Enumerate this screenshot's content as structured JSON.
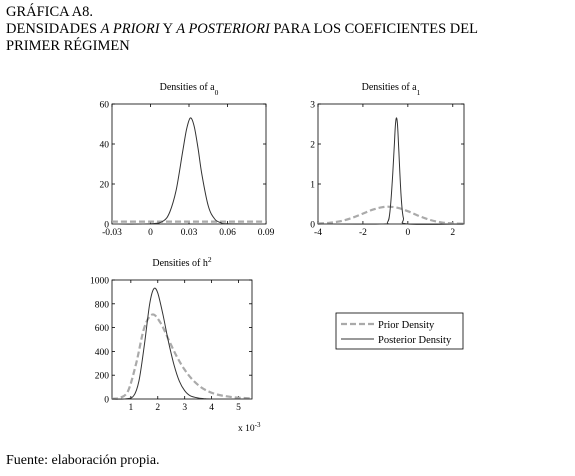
{
  "heading": {
    "line1": "GRÁFICA A8.",
    "line2_a": "DENSIDADES ",
    "line2_b": "A PRIORI",
    "line2_c": " Y ",
    "line2_d": "A POSTERIORI",
    "line2_e": " PARA LOS COEFICIENTES DEL",
    "line3": "PRIMER RÉGIMEN"
  },
  "source": "Fuente: elaboración propia.",
  "legend": {
    "prior": "Prior Density",
    "posterior": "Posterior Density"
  },
  "colors": {
    "prior": "#aaaaaa",
    "posterior": "#333333",
    "axis": "#000000"
  },
  "chart_data": [
    {
      "type": "line",
      "title": "Densities of a",
      "title_sub": "0",
      "xlim": [
        -0.03,
        0.09
      ],
      "ylim": [
        0,
        60
      ],
      "xticks": [
        -0.03,
        0,
        0.03,
        0.06,
        0.09
      ],
      "xtick_labels": [
        "-0.03",
        "0",
        "0.03",
        "0.06",
        "0.09"
      ],
      "yticks": [
        0,
        20,
        40,
        60
      ],
      "ytick_labels": [
        "0",
        "20",
        "40",
        "60"
      ],
      "series": [
        {
          "role": "prior",
          "x": [
            -0.03,
            0.0,
            0.03,
            0.06,
            0.09
          ],
          "y": [
            1.2,
            1.2,
            1.2,
            1.2,
            1.2
          ]
        },
        {
          "role": "posterior",
          "x": [
            -0.03,
            0.0,
            0.01,
            0.015,
            0.02,
            0.025,
            0.028,
            0.031,
            0.034,
            0.037,
            0.04,
            0.045,
            0.05,
            0.055,
            0.06,
            0.09
          ],
          "y": [
            0,
            0.1,
            1.5,
            6,
            17,
            36,
            47,
            53,
            49,
            38,
            25,
            9,
            2.5,
            0.6,
            0.1,
            0
          ]
        }
      ]
    },
    {
      "type": "line",
      "title": "Densities of a",
      "title_sub": "1",
      "xlim": [
        -4,
        2.5
      ],
      "ylim": [
        0,
        3
      ],
      "xticks": [
        -4,
        -2,
        0,
        2
      ],
      "xtick_labels": [
        "-4",
        "-2",
        "0",
        "2"
      ],
      "yticks": [
        0,
        1,
        2,
        3
      ],
      "ytick_labels": [
        "0",
        "1",
        "2",
        "3"
      ],
      "series": [
        {
          "role": "prior",
          "x": [
            -4,
            -3.5,
            -3,
            -2.5,
            -2,
            -1.5,
            -1,
            -0.5,
            0,
            0.5,
            1,
            1.5,
            2,
            2.5
          ],
          "y": [
            0.01,
            0.03,
            0.07,
            0.15,
            0.26,
            0.37,
            0.43,
            0.41,
            0.32,
            0.2,
            0.1,
            0.04,
            0.015,
            0.005
          ]
        },
        {
          "role": "posterior",
          "x": [
            -4,
            -1.2,
            -0.9,
            -0.8,
            -0.7,
            -0.6,
            -0.55,
            -0.5,
            -0.45,
            -0.4,
            -0.3,
            -0.2,
            0,
            2.5
          ],
          "y": [
            0,
            0,
            0.05,
            0.3,
            1.0,
            2.0,
            2.5,
            2.65,
            2.4,
            1.8,
            0.7,
            0.15,
            0,
            0
          ]
        }
      ]
    },
    {
      "type": "line",
      "title": "Densities of h",
      "title_sup": "2",
      "xlim": [
        0.3,
        5.5
      ],
      "ylim": [
        0,
        1000
      ],
      "xticks": [
        1,
        2,
        3,
        4,
        5
      ],
      "xtick_labels": [
        "1",
        "2",
        "3",
        "4",
        "5"
      ],
      "yticks": [
        0,
        200,
        400,
        600,
        800,
        1000
      ],
      "ytick_labels": [
        "0",
        "200",
        "400",
        "600",
        "800",
        "1000"
      ],
      "x_multiplier": "x 10",
      "x_multiplier_exp": "-3",
      "series": [
        {
          "role": "prior",
          "x": [
            0.3,
            0.6,
            0.9,
            1.2,
            1.5,
            1.8,
            2.1,
            2.4,
            2.7,
            3.0,
            3.3,
            3.6,
            3.9,
            4.2,
            4.5,
            4.8,
            5.1,
            5.5
          ],
          "y": [
            2,
            10,
            70,
            300,
            600,
            710,
            640,
            500,
            360,
            245,
            160,
            100,
            62,
            38,
            24,
            15,
            9,
            5
          ]
        },
        {
          "role": "posterior",
          "x": [
            0.3,
            0.8,
            1.1,
            1.3,
            1.5,
            1.7,
            1.85,
            2.0,
            2.2,
            2.4,
            2.6,
            2.8,
            3.0,
            3.2,
            3.5,
            3.8,
            4.2,
            5.5
          ],
          "y": [
            0,
            1,
            25,
            150,
            450,
            800,
            925,
            890,
            700,
            480,
            290,
            150,
            70,
            28,
            8,
            2,
            0,
            0
          ]
        }
      ]
    }
  ]
}
